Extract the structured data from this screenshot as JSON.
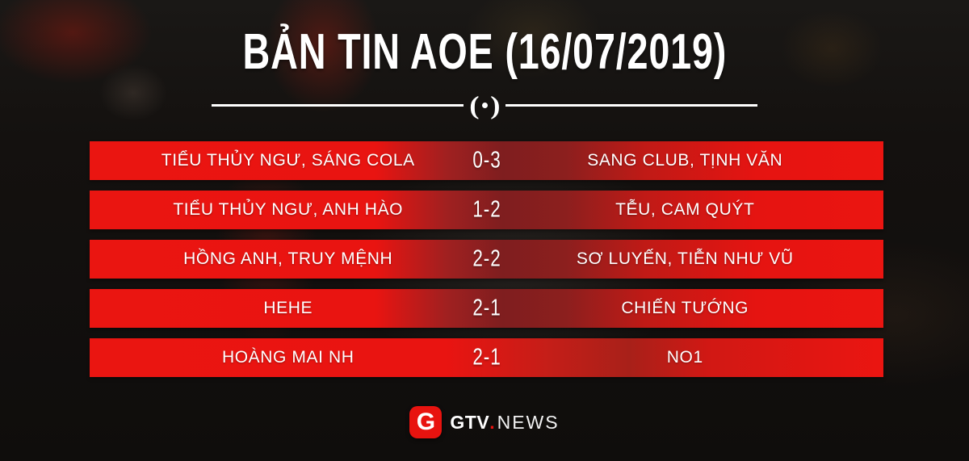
{
  "title": "BẢN TIN AOE (16/07/2019)",
  "ornament": {
    "left": "(",
    "right": ")"
  },
  "table": {
    "columns": [
      "team_left",
      "score",
      "team_right"
    ],
    "matches": [
      {
        "left": "TIỂU THỦY NGƯ, SÁNG COLA",
        "score": "0-3",
        "right": "SANG CLUB, TỊNH VĂN"
      },
      {
        "left": "TIỂU THỦY NGƯ, ANH HÀO",
        "score": "1-2",
        "right": "TỄU, CAM QUÝT"
      },
      {
        "left": "HỒNG ANH, TRUY MỆNH",
        "score": "2-2",
        "right": "SƠ LUYẾN, TIỄN NHƯ VŨ"
      },
      {
        "left": "HEHE",
        "score": "2-1",
        "right": "CHIẾN TƯỚNG"
      },
      {
        "left": "HOÀNG MAI NH",
        "score": "2-1",
        "right": "NO1"
      }
    ]
  },
  "logo": {
    "icon_letter": "G",
    "brand": "GTV",
    "dot": ".",
    "suffix": "NEWS"
  },
  "colors": {
    "accent_red": "#e8130f",
    "bar_bright_red": "#ea1511",
    "bar_dark_red": "#7f1e1f",
    "text_white": "#ffffff",
    "background_dark": "#12100f"
  }
}
